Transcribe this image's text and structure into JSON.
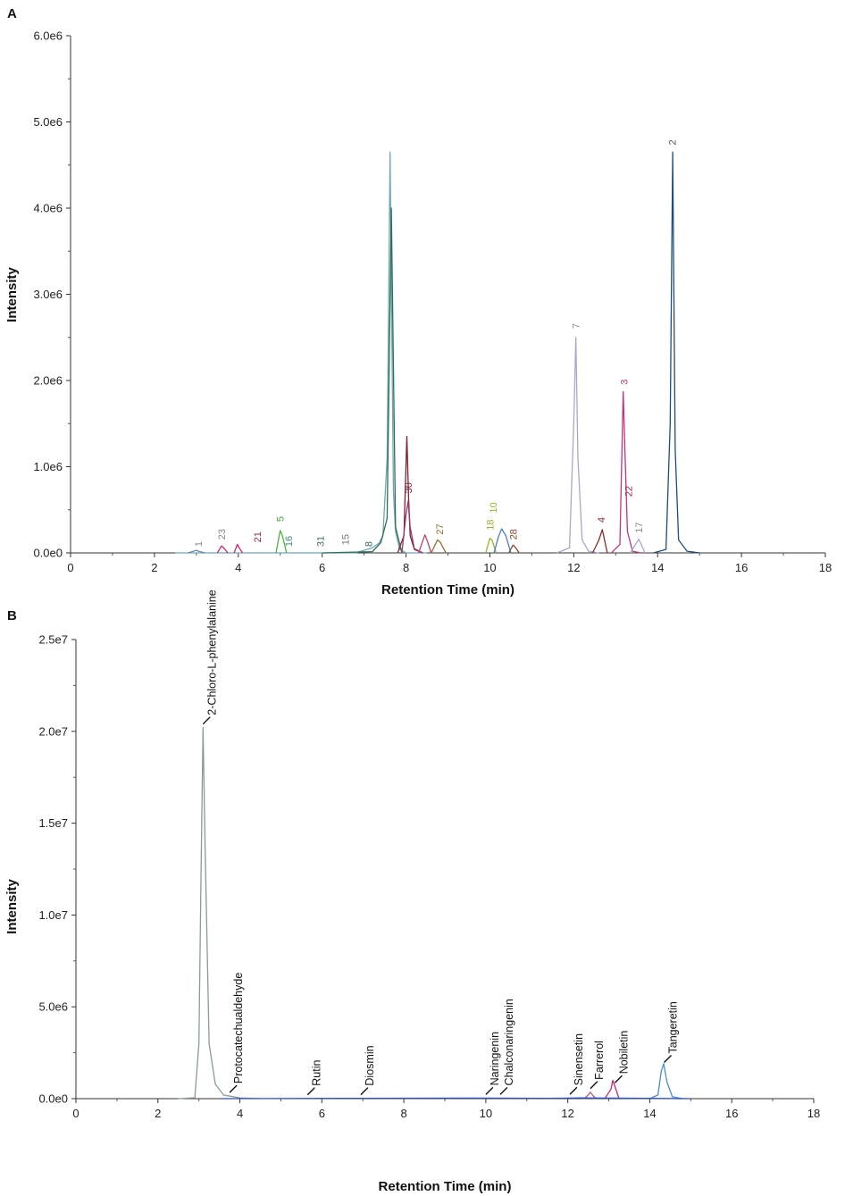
{
  "chart_data": [
    {
      "panel_label": "A",
      "type": "line",
      "xlabel": "Retention Time (min)",
      "ylabel": "Intensity",
      "xlim": [
        0,
        18
      ],
      "ylim": [
        0,
        6000000
      ],
      "x_ticks": [
        "0",
        "2",
        "4",
        "6",
        "8",
        "10",
        "12",
        "14",
        "16",
        "18"
      ],
      "y_ticks": [
        "0.0e0",
        "1.0e6",
        "2.0e6",
        "3.0e6",
        "4.0e6",
        "5.0e6",
        "6.0e6"
      ],
      "series": [
        {
          "color": "#6fa8b4",
          "x": [
            2.5,
            6.8,
            7.0,
            7.2,
            7.35,
            7.45,
            7.55,
            7.62,
            7.66,
            7.7,
            7.75,
            7.85,
            8.0,
            8.5
          ],
          "y": [
            0,
            0,
            30000,
            60000,
            110000,
            200000,
            1100000,
            4650000,
            2600000,
            700000,
            250000,
            40000,
            0,
            0
          ]
        },
        {
          "color": "#2e6e5a",
          "x": [
            6.0,
            7.2,
            7.4,
            7.55,
            7.65,
            7.75,
            7.9
          ],
          "y": [
            0,
            15000,
            120000,
            400000,
            4000000,
            300000,
            0
          ]
        },
        {
          "color": "#7d2035",
          "x": [
            7.8,
            7.95,
            8.02,
            8.06,
            8.1,
            8.2,
            8.4
          ],
          "y": [
            0,
            200000,
            1350000,
            650000,
            200000,
            40000,
            0
          ]
        },
        {
          "color": "#9a3e6d",
          "x": [
            7.9,
            8.0,
            8.05,
            8.1,
            8.2,
            8.4
          ],
          "y": [
            0,
            450000,
            600000,
            300000,
            50000,
            0
          ]
        },
        {
          "color": "#a8a8c8",
          "x": [
            11.6,
            11.9,
            12.0,
            12.05,
            12.1,
            12.2,
            12.35,
            12.6
          ],
          "y": [
            0,
            60000,
            1500000,
            2500000,
            1100000,
            150000,
            20000,
            0
          ]
        },
        {
          "color": "#c0357b",
          "x": [
            12.9,
            13.1,
            13.18,
            13.22,
            13.28,
            13.4,
            13.6
          ],
          "y": [
            0,
            100000,
            1870000,
            1200000,
            250000,
            20000,
            0
          ]
        },
        {
          "color": "#1f4e79",
          "x": [
            13.9,
            14.2,
            14.3,
            14.36,
            14.42,
            14.5,
            14.7,
            15.0
          ],
          "y": [
            0,
            40000,
            1500000,
            4650000,
            1200000,
            150000,
            20000,
            0
          ]
        },
        {
          "color": "#8b2a2a",
          "x": [
            12.45,
            12.6,
            12.68,
            12.8
          ],
          "y": [
            0,
            150000,
            270000,
            0
          ]
        },
        {
          "color": "#a8a8c8",
          "x": [
            13.35,
            13.5,
            13.55,
            13.7
          ],
          "y": [
            0,
            120000,
            160000,
            0
          ]
        },
        {
          "color": "#50b040",
          "x": [
            4.9,
            5.0,
            5.05,
            5.15
          ],
          "y": [
            0,
            260000,
            200000,
            0
          ]
        },
        {
          "color": "#c02a70",
          "x": [
            3.5,
            3.6,
            3.65,
            3.75
          ],
          "y": [
            0,
            80000,
            60000,
            0
          ]
        },
        {
          "color": "#c02a70",
          "x": [
            3.9,
            3.98,
            4.02,
            4.1
          ],
          "y": [
            0,
            100000,
            60000,
            0
          ]
        },
        {
          "color": "#8a7030",
          "x": [
            8.6,
            8.75,
            8.82,
            8.95
          ],
          "y": [
            0,
            150000,
            120000,
            0
          ]
        },
        {
          "color": "#b04a6a",
          "x": [
            8.3,
            8.45,
            8.5,
            8.6
          ],
          "y": [
            0,
            210000,
            150000,
            0
          ]
        },
        {
          "color": "#9bb030",
          "x": [
            9.9,
            10.0,
            10.05,
            10.15
          ],
          "y": [
            0,
            170000,
            150000,
            0
          ]
        },
        {
          "color": "#4a80c0",
          "x": [
            10.1,
            10.2,
            10.28,
            10.38,
            10.5
          ],
          "y": [
            0,
            180000,
            280000,
            200000,
            0
          ]
        },
        {
          "color": "#8b4a2a",
          "x": [
            10.45,
            10.55,
            10.6,
            10.7
          ],
          "y": [
            0,
            90000,
            70000,
            0
          ]
        },
        {
          "color": "#6a8ab0",
          "x": [
            2.8,
            3.0,
            3.05,
            3.2
          ],
          "y": [
            0,
            30000,
            20000,
            0
          ]
        }
      ],
      "peak_labels": [
        {
          "text": "1",
          "x": 3.05,
          "y": 40000,
          "color": "#888888"
        },
        {
          "text": "23",
          "x": 3.6,
          "y": 120000,
          "color": "#888888"
        },
        {
          "text": "21",
          "x": 4.45,
          "y": 90000,
          "color": "#8a2a5a"
        },
        {
          "text": "5",
          "x": 5.0,
          "y": 330000,
          "color": "#40a040"
        },
        {
          "text": "16",
          "x": 5.2,
          "y": 40000,
          "color": "#4a8a8a"
        },
        {
          "text": "31",
          "x": 5.95,
          "y": 40000,
          "color": "#4a6a6a"
        },
        {
          "text": "15",
          "x": 6.55,
          "y": 60000,
          "color": "#777777"
        },
        {
          "text": "8",
          "x": 7.1,
          "y": 40000,
          "color": "#2e6e5a"
        },
        {
          "text": "30",
          "x": 8.05,
          "y": 660000,
          "color": "#7d2035"
        },
        {
          "text": "27",
          "x": 8.8,
          "y": 180000,
          "color": "#8a7030"
        },
        {
          "text": "18",
          "x": 10.0,
          "y": 230000,
          "color": "#9bb030"
        },
        {
          "text": "10",
          "x": 10.08,
          "y": 430000,
          "color": "#9bb030"
        },
        {
          "text": "28",
          "x": 10.55,
          "y": 120000,
          "color": "#8b4a2a"
        },
        {
          "text": "7",
          "x": 12.05,
          "y": 2570000,
          "color": "#888888"
        },
        {
          "text": "4",
          "x": 12.65,
          "y": 320000,
          "color": "#8b2a2a"
        },
        {
          "text": "3",
          "x": 13.2,
          "y": 1920000,
          "color": "#c0357b"
        },
        {
          "text": "22",
          "x": 13.3,
          "y": 620000,
          "color": "#8a2a5a"
        },
        {
          "text": "17",
          "x": 13.55,
          "y": 200000,
          "color": "#888888"
        },
        {
          "text": "2",
          "x": 14.35,
          "y": 4700000,
          "color": "#555555"
        }
      ]
    },
    {
      "panel_label": "B",
      "type": "line",
      "xlabel": "Retention Time (min)",
      "ylabel": "Intensity",
      "xlim": [
        0,
        18
      ],
      "ylim": [
        0,
        25000000
      ],
      "x_ticks": [
        "0",
        "2",
        "4",
        "6",
        "8",
        "10",
        "12",
        "14",
        "16",
        "18"
      ],
      "y_ticks": [
        "0.0e0",
        "5.0e6",
        "1.0e7",
        "1.5e7",
        "2.0e7",
        "2.5e7"
      ],
      "series": [
        {
          "color": "#8a9a9a",
          "x": [
            2.5,
            2.9,
            3.0,
            3.05,
            3.1,
            3.15,
            3.25,
            3.4,
            3.6,
            4.0,
            4.5
          ],
          "y": [
            0,
            50000,
            3000000,
            12000000,
            20200000,
            14000000,
            3000000,
            800000,
            200000,
            40000,
            0
          ]
        },
        {
          "color": "#4a90c0",
          "x": [
            14.0,
            14.2,
            14.28,
            14.34,
            14.42,
            14.55,
            14.8
          ],
          "y": [
            0,
            200000,
            1500000,
            1900000,
            900000,
            100000,
            0
          ]
        },
        {
          "color": "#c02a70",
          "x": [
            12.9,
            13.05,
            13.1,
            13.16,
            13.25
          ],
          "y": [
            0,
            500000,
            1000000,
            600000,
            0
          ]
        },
        {
          "color": "#b06070",
          "x": [
            12.4,
            12.5,
            12.55,
            12.62,
            12.7
          ],
          "y": [
            0,
            200000,
            350000,
            150000,
            0
          ]
        },
        {
          "color": "#3050c0",
          "x": [
            3.5,
            7.0,
            10.0,
            11.5,
            12.3,
            15.0
          ],
          "y": [
            0,
            20000,
            30000,
            20000,
            40000,
            0
          ]
        }
      ],
      "compound_labels": [
        {
          "text": "2-Chloro-L-phenylalanine",
          "x": 3.1
        },
        {
          "text": "Protocatechualdehyde",
          "x": 3.75
        },
        {
          "text": "Rutin",
          "x": 5.65
        },
        {
          "text": "Diosmin",
          "x": 6.95
        },
        {
          "text": "Naringenin",
          "x": 10.0
        },
        {
          "text": "Chalconaringenin",
          "x": 10.35
        },
        {
          "text": "Sinensetin",
          "x": 12.05
        },
        {
          "text": "Farrerol",
          "x": 12.55
        },
        {
          "text": "Nobiletin",
          "x": 13.15
        },
        {
          "text": "Tangeretin",
          "x": 14.35
        }
      ]
    }
  ]
}
